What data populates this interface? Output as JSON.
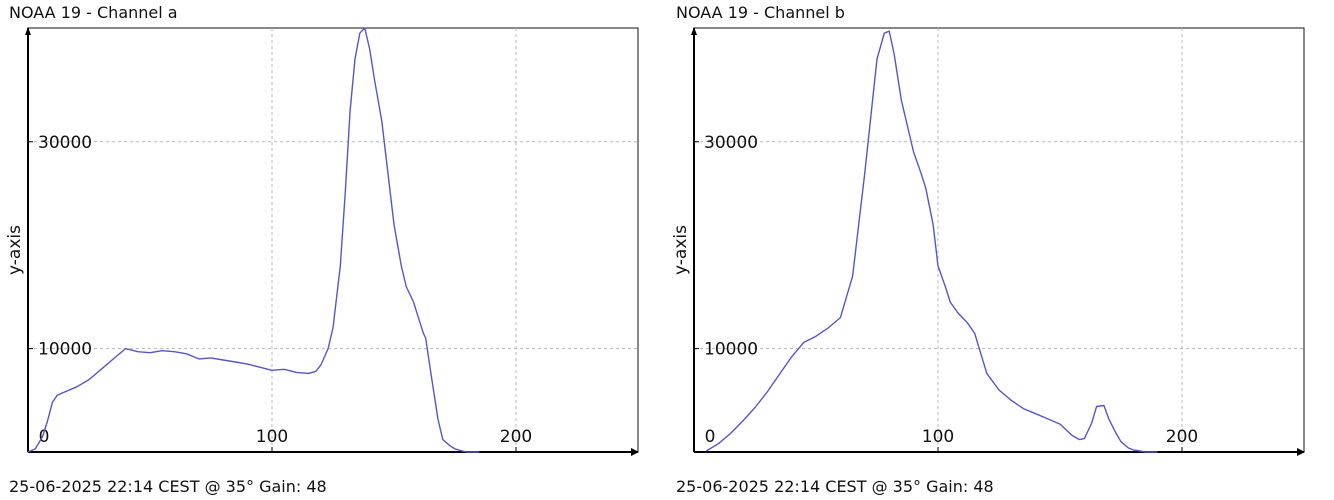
{
  "chart_data": [
    {
      "type": "line",
      "title": "NOAA 19 - Channel a",
      "xlabel": "",
      "ylabel": "y-axis",
      "footer": "25-06-2025 22:14 CEST @ 35° Gain: 48",
      "xlim": [
        0,
        250
      ],
      "ylim": [
        0,
        41000
      ],
      "xticks": [
        0,
        100,
        200
      ],
      "yticks": [
        10000,
        30000
      ],
      "grid": true,
      "line_color": "#5555cc",
      "series": [
        {
          "x": [
            0,
            3,
            6,
            8,
            10,
            12,
            15,
            20,
            25,
            30,
            35,
            40,
            45,
            50,
            55,
            60,
            65,
            70,
            75,
            80,
            85,
            90,
            95,
            100,
            105,
            110,
            115,
            118,
            120,
            123,
            125,
            128,
            130,
            132,
            134,
            136,
            138,
            140,
            142,
            145,
            148,
            150,
            153,
            155,
            158,
            160,
            162,
            163,
            165,
            168,
            170,
            173,
            175,
            178,
            180,
            183,
            185
          ],
          "y": [
            0,
            300,
            1500,
            3000,
            4800,
            5500,
            5800,
            6300,
            7000,
            8000,
            9000,
            10000,
            9700,
            9600,
            9800,
            9700,
            9500,
            9000,
            9100,
            8900,
            8700,
            8500,
            8200,
            7900,
            8000,
            7700,
            7600,
            7800,
            8400,
            10000,
            12000,
            18000,
            25000,
            33000,
            38000,
            40500,
            41000,
            39000,
            36000,
            32000,
            26000,
            22000,
            18000,
            16000,
            14500,
            13000,
            11500,
            11000,
            7800,
            3200,
            1200,
            600,
            300,
            100,
            0,
            0,
            0
          ]
        }
      ]
    },
    {
      "type": "line",
      "title": "NOAA 19 - Channel b",
      "xlabel": "",
      "ylabel": "y-axis",
      "footer": "25-06-2025 22:14 CEST @ 35° Gain: 48",
      "xlim": [
        0,
        250
      ],
      "ylim": [
        0,
        41000
      ],
      "xticks": [
        0,
        100,
        200
      ],
      "yticks": [
        10000,
        30000
      ],
      "grid": true,
      "line_color": "#5555cc",
      "series": [
        {
          "x": [
            5,
            10,
            15,
            20,
            25,
            30,
            35,
            40,
            45,
            50,
            55,
            60,
            65,
            70,
            75,
            78,
            80,
            82,
            85,
            88,
            90,
            93,
            95,
            98,
            100,
            103,
            105,
            108,
            110,
            112,
            115,
            120,
            125,
            130,
            135,
            140,
            145,
            150,
            155,
            158,
            160,
            163,
            165,
            168,
            170,
            173,
            175,
            178,
            180,
            183,
            185,
            190
          ],
          "y": [
            100,
            800,
            1800,
            3000,
            4300,
            5800,
            7500,
            9200,
            10600,
            11200,
            12000,
            13000,
            17000,
            27000,
            38000,
            40500,
            40700,
            38500,
            34000,
            31000,
            29000,
            27000,
            25500,
            22000,
            18000,
            16000,
            14500,
            13500,
            13000,
            12500,
            11500,
            7600,
            6000,
            5000,
            4200,
            3700,
            3200,
            2700,
            1600,
            1200,
            1300,
            2800,
            4400,
            4500,
            3200,
            1800,
            1000,
            400,
            200,
            100,
            0,
            0
          ]
        }
      ]
    }
  ]
}
